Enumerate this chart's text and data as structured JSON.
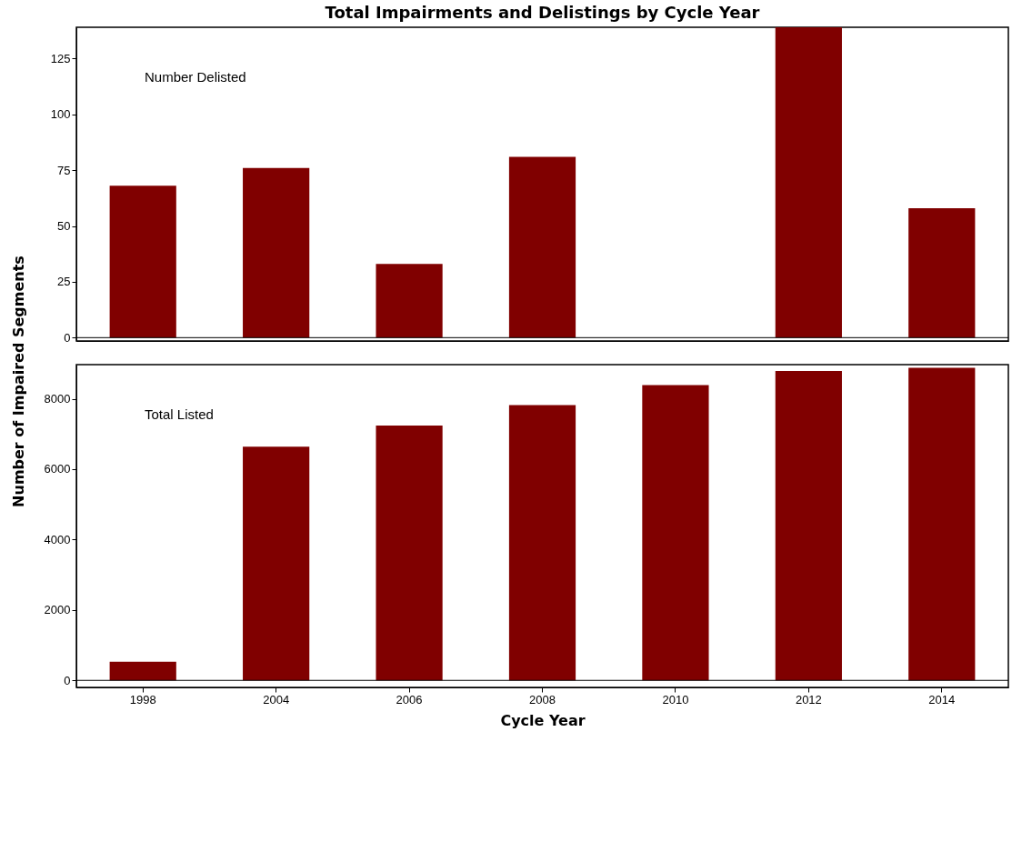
{
  "chart_data": [
    {
      "type": "bar",
      "title": "Total Impairments and Delistings by Cycle Year",
      "ylabel": "Number of Impaired Segments",
      "categories": [
        "1998",
        "2004",
        "2006",
        "2008",
        "2010",
        "2012",
        "2014"
      ],
      "values": [
        68,
        76,
        33,
        81,
        null,
        139,
        58
      ],
      "color": "#800000",
      "ylim": [
        -1.5,
        139
      ],
      "yticks": [
        0,
        25,
        50,
        75,
        100,
        125
      ],
      "tick_labels": "y",
      "ref_lines": [
        {
          "axis": "y",
          "value": 0
        }
      ],
      "annotations": [
        "Number Delisted"
      ]
    },
    {
      "type": "bar",
      "xlabel": "Cycle Year",
      "categories": [
        "1998",
        "2004",
        "2006",
        "2008",
        "2010",
        "2012",
        "2014"
      ],
      "values": [
        530,
        6640,
        7240,
        7820,
        8390,
        8790,
        8880
      ],
      "color": "#800000",
      "ylim": [
        -200,
        8970
      ],
      "yticks": [
        0,
        2000,
        4000,
        6000,
        8000
      ],
      "ref_lines": [
        {
          "axis": "y",
          "value": 0
        }
      ],
      "annotations": [
        "Total Listed"
      ]
    }
  ]
}
